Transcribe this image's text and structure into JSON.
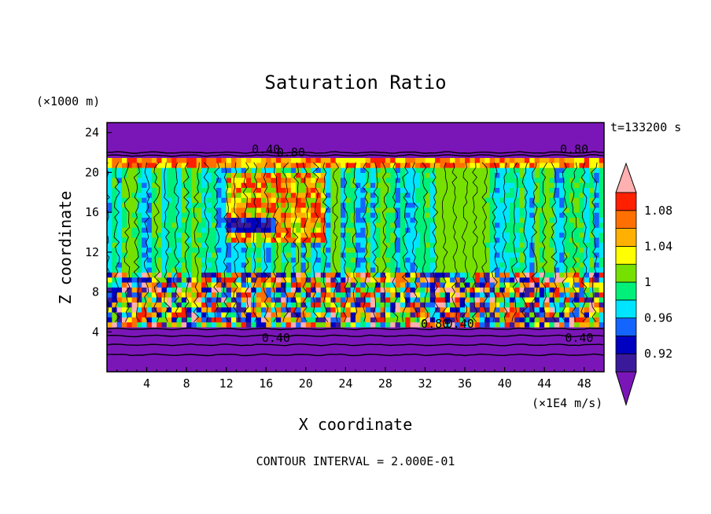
{
  "chart_data": {
    "type": "heatmap",
    "title": "Saturation Ratio",
    "xlabel": "X coordinate",
    "ylabel": "Z coordinate",
    "x_unit": "(×1E4 m/s)",
    "y_unit": "(×1000 m)",
    "time_label": "t=133200 s",
    "footer": "CONTOUR INTERVAL = 2.000E-01",
    "xlim": [
      0,
      50
    ],
    "ylim": [
      0,
      25
    ],
    "x_ticks": [
      4,
      8,
      12,
      16,
      20,
      24,
      28,
      32,
      36,
      40,
      44,
      48
    ],
    "y_ticks": [
      4,
      8,
      12,
      16,
      20,
      24
    ],
    "colorbar": {
      "levels": [
        0.9,
        0.92,
        0.94,
        0.96,
        0.98,
        1.0,
        1.02,
        1.04,
        1.06,
        1.08,
        1.1
      ],
      "colors": [
        "#3a1a9a",
        "#0000c0",
        "#1464ff",
        "#00e5ff",
        "#00f07a",
        "#76e000",
        "#ffff00",
        "#ffb000",
        "#ff7000",
        "#ff2000"
      ],
      "under_color": "#7a16b8",
      "over_color": "#ffb0b0",
      "labels": [
        "0.92",
        "0.96",
        "1",
        "1.04",
        "1.08"
      ],
      "label_values": [
        0.92,
        0.96,
        1.0,
        1.04,
        1.08
      ]
    },
    "contour_labels": [
      "0.40",
      "0.80",
      "0.80",
      "0.80",
      "0.40",
      "0.40",
      "0.40"
    ],
    "regions": {
      "upper_dry": {
        "z_min": 21.5,
        "z_max": 25,
        "value": 0.4
      },
      "lower_dry": {
        "z_min": 0,
        "z_max": 4.5,
        "value": 0.4
      },
      "supersat_band": {
        "x_min": 12,
        "x_max": 22,
        "z_min": 13,
        "z_max": 20,
        "value": 1.08
      },
      "near_saturation_column": {
        "x_min": 33,
        "x_max": 38,
        "z_min": 5,
        "z_max": 21,
        "value": 1.0
      }
    }
  }
}
